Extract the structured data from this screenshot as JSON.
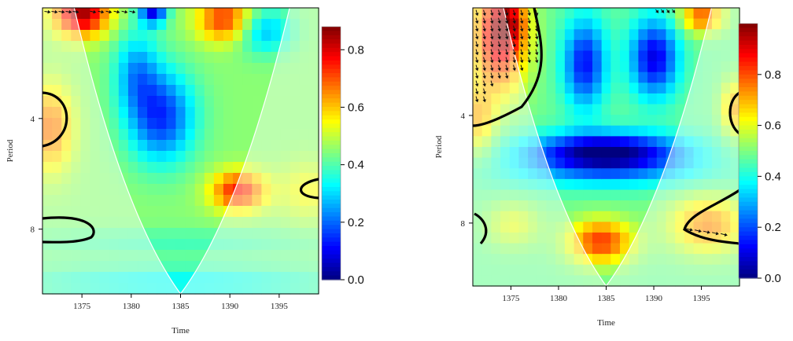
{
  "chart_data": [
    {
      "type": "heatmap",
      "title": "",
      "xlabel": "Time",
      "ylabel": "Period",
      "x_ticks": [
        "1375",
        "1380",
        "1385",
        "1390",
        "1395"
      ],
      "y_ticks": [
        "4",
        "8"
      ],
      "colorbar_ticks": [
        "0.0",
        "0.2",
        "0.4",
        "0.6",
        "0.8"
      ],
      "xlim": [
        1371,
        1399
      ],
      "period_range": [
        2,
        12
      ],
      "zlim": [
        0,
        0.88
      ],
      "cone_of_influence": {
        "apex_time": 1385,
        "color": "#ffffff"
      },
      "colorscale": [
        "#00007f",
        "#0000ff",
        "#007fff",
        "#00ffff",
        "#7fff7f",
        "#ffff00",
        "#ff7f00",
        "#ff0000",
        "#7f0000"
      ],
      "arrows_present": true,
      "significance_contours": true,
      "grid": false
    },
    {
      "type": "heatmap",
      "title": "",
      "xlabel": "Time",
      "ylabel": "Period",
      "x_ticks": [
        "1375",
        "1380",
        "1385",
        "1390",
        "1395"
      ],
      "y_ticks": [
        "4",
        "8"
      ],
      "colorbar_ticks": [
        "0.0",
        "0.2",
        "0.4",
        "0.6",
        "0.8"
      ],
      "xlim": [
        1371,
        1399
      ],
      "period_range": [
        2,
        12
      ],
      "zlim": [
        0,
        1.0
      ],
      "cone_of_influence": {
        "apex_time": 1385,
        "color": "#ffffff"
      },
      "colorscale": [
        "#00007f",
        "#0000ff",
        "#007fff",
        "#00ffff",
        "#7fff7f",
        "#ffff00",
        "#ff7f00",
        "#ff0000",
        "#7f0000"
      ],
      "arrows_present": true,
      "significance_contours": true,
      "grid": false
    }
  ]
}
